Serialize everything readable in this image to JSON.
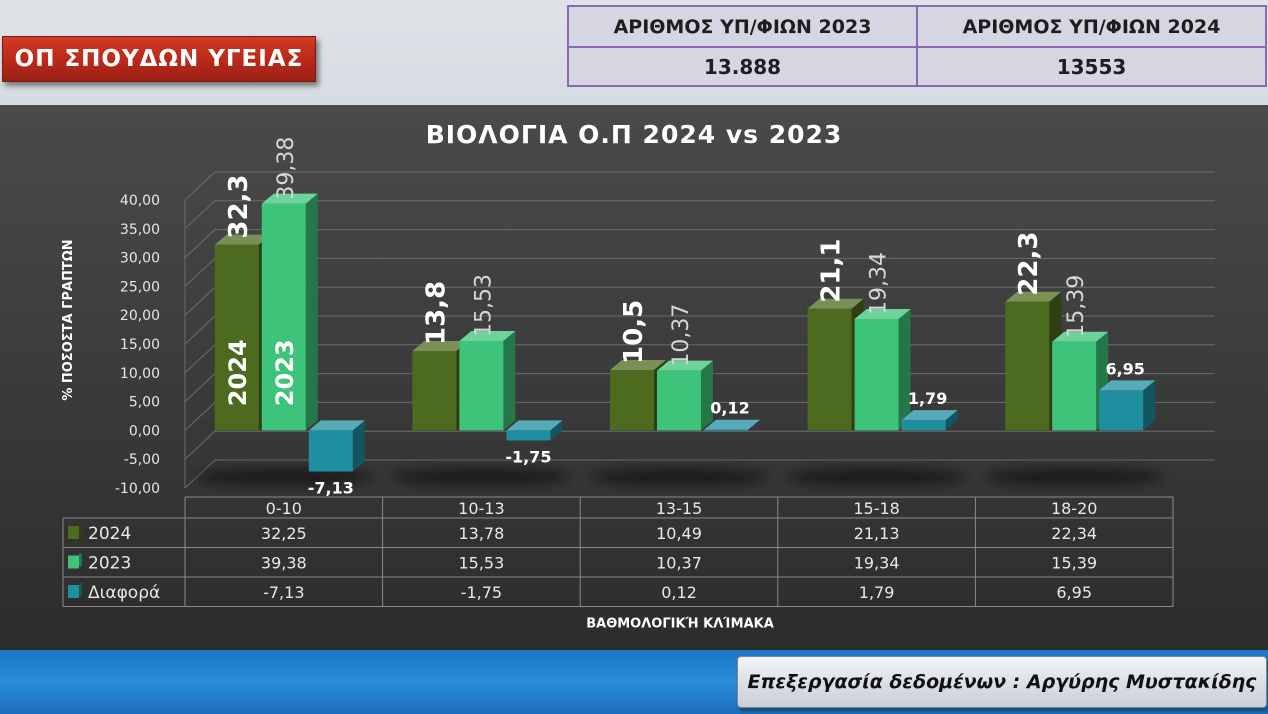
{
  "header": {
    "program_label": "ΟΠ ΣΠΟΥΔΩΝ ΥΓΕΙΑΣ",
    "counts": {
      "label_2023": "ΑΡΙΘΜΟΣ ΥΠ/ΦΙΩΝ 2023",
      "label_2024": "ΑΡΙΘΜΟΣ ΥΠ/ΦΙΩΝ 2024",
      "value_2023": "13.888",
      "value_2024": "13553"
    }
  },
  "footer": {
    "credit": "Επεξεργασία δεδομένων : Αργύρης Μυστακίδης"
  },
  "chart_data": {
    "type": "bar",
    "title": "ΒΙΟΛΟΓΙΑ Ο.Π 2024 vs 2023",
    "xlabel": "ΒΑΘΜΟΛΟΓΙΚΉ ΚΛΊΜΑΚΑ",
    "ylabel": "% ΠΟΣΟΣΤΑ ΓΡΑΠΤΩΝ",
    "ylim": [
      -10,
      40
    ],
    "yticks": [
      "-10,00",
      "-5,00",
      "0,00",
      "5,00",
      "10,00",
      "15,00",
      "20,00",
      "25,00",
      "30,00",
      "35,00",
      "40,00"
    ],
    "categories": [
      "0-10",
      "10-13",
      "13-15",
      "15-18",
      "18-20"
    ],
    "series": [
      {
        "name": "2024",
        "values": [
          32.25,
          13.78,
          10.49,
          21.13,
          22.34
        ],
        "table_values": [
          "32,25",
          "13,78",
          "10,49",
          "21,13",
          "22,34"
        ],
        "bar_labels": [
          "32,3",
          "13,8",
          "10,5",
          "21,1",
          "22,3"
        ],
        "color": "#4d6b1f"
      },
      {
        "name": "2023",
        "values": [
          39.38,
          15.53,
          10.37,
          19.34,
          15.39
        ],
        "table_values": [
          "39,38",
          "15,53",
          "10,37",
          "19,34",
          "15,39"
        ],
        "bar_labels": [
          "39,38",
          "15,53",
          "10,37",
          "19,34",
          "15,39"
        ],
        "color": "#3ec47a"
      },
      {
        "name": "Διαφορά",
        "values": [
          -7.13,
          -1.75,
          0.12,
          1.79,
          6.95
        ],
        "table_values": [
          "-7,13",
          "-1,75",
          "0,12",
          "1,79",
          "6,95"
        ],
        "bar_labels": [
          "-7,13",
          "-1,75",
          "0,12",
          "1,79",
          "6,95"
        ],
        "color": "#1f8fa0"
      }
    ],
    "inside_labels": [
      "2024",
      "2023"
    ],
    "grid": true,
    "legend": "table"
  }
}
